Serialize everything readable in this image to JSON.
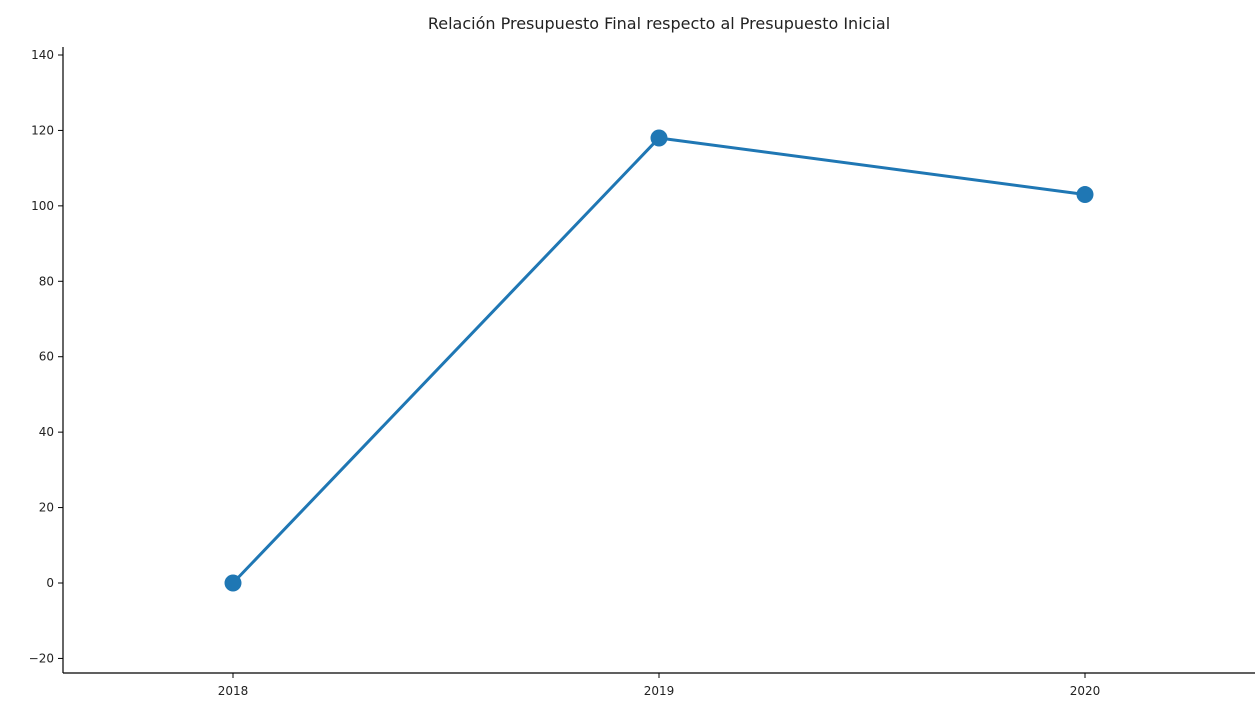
{
  "chart_data": {
    "type": "line",
    "title": "Relación Presupuesto Final respecto al Presupuesto Inicial",
    "xlabel": "",
    "ylabel": "",
    "categories": [
      "2018",
      "2019",
      "2020"
    ],
    "series": [
      {
        "values": [
          0,
          118,
          103
        ],
        "color": "#1f77b4",
        "marker": "circle"
      }
    ],
    "ylim": [
      -24,
      142
    ],
    "yticks": [
      -20,
      0,
      20,
      40,
      60,
      80,
      100,
      120,
      140
    ],
    "ytick_labels": [
      "−20",
      "0",
      "20",
      "40",
      "60",
      "80",
      "100",
      "120",
      "140"
    ],
    "grid": false,
    "legend": "none"
  }
}
